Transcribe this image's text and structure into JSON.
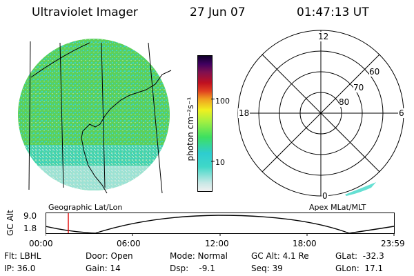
{
  "header": {
    "instrument": "Ultraviolet Imager",
    "date": "27 Jun 07",
    "time": "01:47:13 UT"
  },
  "colorbar": {
    "label": "photon cm⁻²s⁻¹",
    "ticks": [
      "100",
      "10"
    ]
  },
  "polar_plot": {
    "mlt_labels": [
      "12",
      "18",
      "6",
      "0"
    ],
    "lat_labels": [
      "60",
      "70",
      "80"
    ]
  },
  "panels": {
    "left_caption": "Geographic Lat/Lon",
    "right_caption": "Apex MLat/MLT"
  },
  "altitude_plot": {
    "ylabel": "GC Alt",
    "yticks": [
      "9.0",
      "1.8"
    ],
    "xticks": [
      "00:00",
      "06:00",
      "12:00",
      "18:00",
      "23:59"
    ]
  },
  "status": {
    "flt": "Flt: LBHL",
    "ip": "IP: 36.0",
    "door": "Door: Open",
    "gain": "Gain: 14",
    "mode": "Mode: Normal",
    "dsp": "Dsp:    -9.1",
    "gc_alt": "GC Alt: 4.1 Re",
    "seq": "Seq: 39",
    "glat": "GLat:  -32.3",
    "glon": "GLon:  17.1"
  },
  "colors": {
    "aurora_green": "#5cd05c",
    "aurora_cyan": "#3ad8c8",
    "time_marker": "#e00000"
  }
}
